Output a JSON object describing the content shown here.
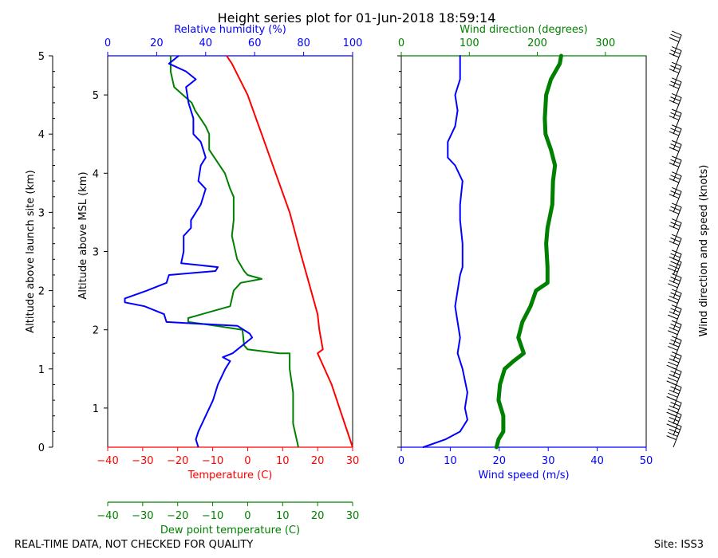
{
  "title": "Height series plot for 01-Jun-2018 18:59:14",
  "footer_left": "REAL-TIME DATA, NOT CHECKED FOR QUALITY",
  "footer_right": "Site: ISS3",
  "colors": {
    "temperature": "#ff0000",
    "dewpoint": "#008000",
    "rh": "#0000ff",
    "wspd": "#0000ff",
    "wdir": "#008000",
    "barb": "#000000"
  },
  "chart_data": [
    {
      "type": "line",
      "name": "thermo-panel",
      "ylabel_outer": "Altitude above launch site (km)",
      "ylabel_inner": "Altitude above MSL (km)",
      "outer_ticks": [
        "0",
        "1",
        "2",
        "3",
        "4",
        "5"
      ],
      "inner_ticks": [
        "1",
        "2",
        "3",
        "4",
        "5"
      ],
      "axes": {
        "temperature": {
          "label": "Temperature (C)",
          "ticks": [
            "-40",
            "-30",
            "-20",
            "-10",
            "0",
            "10",
            "20",
            "30"
          ],
          "range": [
            -40,
            30
          ]
        },
        "dewpoint": {
          "label": "Dew point temperature (C)",
          "ticks": [
            "-40",
            "-30",
            "-20",
            "-10",
            "0",
            "10",
            "20",
            "30"
          ],
          "range": [
            -40,
            30
          ]
        },
        "rh": {
          "label": "Relative humidity (%)",
          "ticks": [
            "0",
            "20",
            "40",
            "60",
            "80",
            "100"
          ],
          "range": [
            0,
            100
          ]
        }
      },
      "yrange_launch_km": [
        0,
        5
      ],
      "series": [
        {
          "name": "Temperature",
          "axis": "temperature",
          "points": [
            [
              30,
              0
            ],
            [
              27,
              0.4
            ],
            [
              24,
              0.8
            ],
            [
              21,
              1.1
            ],
            [
              20,
              1.2
            ],
            [
              21.5,
              1.25
            ],
            [
              20.5,
              1.5
            ],
            [
              20,
              1.7
            ],
            [
              17.5,
              2.1
            ],
            [
              15,
              2.5
            ],
            [
              12,
              3.0
            ],
            [
              8,
              3.5
            ],
            [
              4,
              4.0
            ],
            [
              0,
              4.5
            ],
            [
              -4.5,
              4.9
            ],
            [
              -6,
              5.0
            ]
          ],
          "width": 2
        },
        {
          "name": "Dew point",
          "axis": "dewpoint",
          "points": [
            [
              14.5,
              0
            ],
            [
              13,
              0.3
            ],
            [
              13,
              0.7
            ],
            [
              12,
              1.0
            ],
            [
              12,
              1.2
            ],
            [
              9,
              1.2
            ],
            [
              0,
              1.25
            ],
            [
              -1,
              1.3
            ],
            [
              -1.5,
              1.5
            ],
            [
              -9,
              1.55
            ],
            [
              -17,
              1.6
            ],
            [
              -17,
              1.65
            ],
            [
              -9,
              1.75
            ],
            [
              -5,
              1.8
            ],
            [
              -4,
              2.0
            ],
            [
              -2,
              2.1
            ],
            [
              4,
              2.15
            ],
            [
              0,
              2.2
            ],
            [
              -1,
              2.25
            ],
            [
              -3,
              2.4
            ],
            [
              -4,
              2.6
            ],
            [
              -4.5,
              2.7
            ],
            [
              -4,
              2.9
            ],
            [
              -4,
              3.2
            ],
            [
              -5,
              3.3
            ],
            [
              -6.5,
              3.5
            ],
            [
              -11,
              3.8
            ],
            [
              -11,
              4.0
            ],
            [
              -12,
              4.1
            ],
            [
              -15,
              4.3
            ],
            [
              -16,
              4.4
            ],
            [
              -21,
              4.6
            ],
            [
              -22,
              4.8
            ],
            [
              -22,
              5.0
            ]
          ],
          "width": 2
        },
        {
          "name": "Relative humidity",
          "axis": "rh",
          "points": [
            [
              37,
              0
            ],
            [
              36,
              0.1
            ],
            [
              37,
              0.2
            ],
            [
              40,
              0.4
            ],
            [
              43,
              0.6
            ],
            [
              45,
              0.8
            ],
            [
              48,
              1.0
            ],
            [
              50,
              1.1
            ],
            [
              47,
              1.15
            ],
            [
              51,
              1.2
            ],
            [
              59,
              1.4
            ],
            [
              58,
              1.45
            ],
            [
              53,
              1.55
            ],
            [
              24,
              1.6
            ],
            [
              23,
              1.7
            ],
            [
              15,
              1.8
            ],
            [
              7,
              1.85
            ],
            [
              7,
              1.9
            ],
            [
              16,
              2.0
            ],
            [
              24,
              2.1
            ],
            [
              25,
              2.2
            ],
            [
              44,
              2.25
            ],
            [
              45,
              2.3
            ],
            [
              30,
              2.35
            ],
            [
              31,
              2.5
            ],
            [
              31,
              2.7
            ],
            [
              34,
              2.8
            ],
            [
              34,
              2.9
            ],
            [
              38,
              3.1
            ],
            [
              40,
              3.3
            ],
            [
              37,
              3.4
            ],
            [
              38,
              3.6
            ],
            [
              40,
              3.7
            ],
            [
              38,
              3.9
            ],
            [
              35,
              4.0
            ],
            [
              35,
              4.2
            ],
            [
              33,
              4.4
            ],
            [
              32,
              4.6
            ],
            [
              36,
              4.7
            ],
            [
              32,
              4.8
            ],
            [
              25,
              4.9
            ],
            [
              29,
              5.0
            ]
          ],
          "width": 2
        }
      ]
    },
    {
      "type": "line",
      "name": "wind-panel",
      "ylabel_right": "Wind direction and speed (knots)",
      "axes": {
        "wspd": {
          "label": "Wind speed (m/s)",
          "ticks": [
            "0",
            "10",
            "20",
            "30",
            "40",
            "50"
          ],
          "range": [
            0,
            50
          ]
        },
        "wdir": {
          "label": "Wind direction (degrees)",
          "ticks": [
            "0",
            "100",
            "200",
            "300"
          ],
          "range": [
            0,
            360
          ]
        }
      },
      "series": [
        {
          "name": "Wind speed",
          "axis": "wspd",
          "points": [
            [
              4.5,
              0
            ],
            [
              9,
              0.1
            ],
            [
              12,
              0.2
            ],
            [
              13.5,
              0.35
            ],
            [
              13,
              0.5
            ],
            [
              13.5,
              0.7
            ],
            [
              12.5,
              1.0
            ],
            [
              11.5,
              1.2
            ],
            [
              12,
              1.4
            ],
            [
              11.5,
              1.6
            ],
            [
              11,
              1.8
            ],
            [
              11.5,
              2.0
            ],
            [
              12,
              2.2
            ],
            [
              12.5,
              2.3
            ],
            [
              12.5,
              2.6
            ],
            [
              12,
              2.9
            ],
            [
              12,
              3.1
            ],
            [
              12.5,
              3.4
            ],
            [
              11,
              3.6
            ],
            [
              9.5,
              3.7
            ],
            [
              9.5,
              3.9
            ],
            [
              11,
              4.1
            ],
            [
              11.5,
              4.3
            ],
            [
              11,
              4.5
            ],
            [
              12,
              4.7
            ],
            [
              12,
              4.9
            ],
            [
              12,
              5.0
            ]
          ],
          "width": 2
        },
        {
          "name": "Wind direction",
          "axis": "wdir",
          "points": [
            [
              140,
              0
            ],
            [
              143,
              0.1
            ],
            [
              150,
              0.2
            ],
            [
              150,
              0.4
            ],
            [
              143,
              0.6
            ],
            [
              145,
              0.8
            ],
            [
              152,
              1.0
            ],
            [
              165,
              1.1
            ],
            [
              180,
              1.2
            ],
            [
              172,
              1.4
            ],
            [
              178,
              1.6
            ],
            [
              190,
              1.8
            ],
            [
              198,
              2.0
            ],
            [
              215,
              2.1
            ],
            [
              215,
              2.3
            ],
            [
              213,
              2.6
            ],
            [
              215,
              2.8
            ],
            [
              222,
              3.1
            ],
            [
              223,
              3.4
            ],
            [
              226,
              3.6
            ],
            [
              220,
              3.8
            ],
            [
              212,
              4.0
            ],
            [
              211,
              4.2
            ],
            [
              213,
              4.5
            ],
            [
              220,
              4.7
            ],
            [
              233,
              4.9
            ],
            [
              235,
              5.0
            ]
          ],
          "width": 5
        }
      ],
      "barbs_knots": [
        [
          50,
          0
        ],
        [
          50,
          0.15
        ],
        [
          50,
          0.3
        ],
        [
          45,
          0.5
        ],
        [
          45,
          0.7
        ],
        [
          45,
          0.9
        ],
        [
          40,
          1.1
        ],
        [
          40,
          1.3
        ],
        [
          40,
          1.5
        ],
        [
          40,
          1.7
        ],
        [
          35,
          1.9
        ],
        [
          35,
          2.1
        ],
        [
          30,
          2.2
        ],
        [
          30,
          2.4
        ],
        [
          30,
          2.6
        ],
        [
          30,
          2.8
        ],
        [
          30,
          3.0
        ],
        [
          30,
          3.2
        ],
        [
          30,
          3.4
        ],
        [
          30,
          3.6
        ],
        [
          30,
          3.8
        ],
        [
          30,
          4.0
        ],
        [
          30,
          4.2
        ],
        [
          30,
          4.4
        ],
        [
          30,
          4.6
        ],
        [
          30,
          4.8
        ],
        [
          30,
          5.0
        ]
      ]
    }
  ]
}
